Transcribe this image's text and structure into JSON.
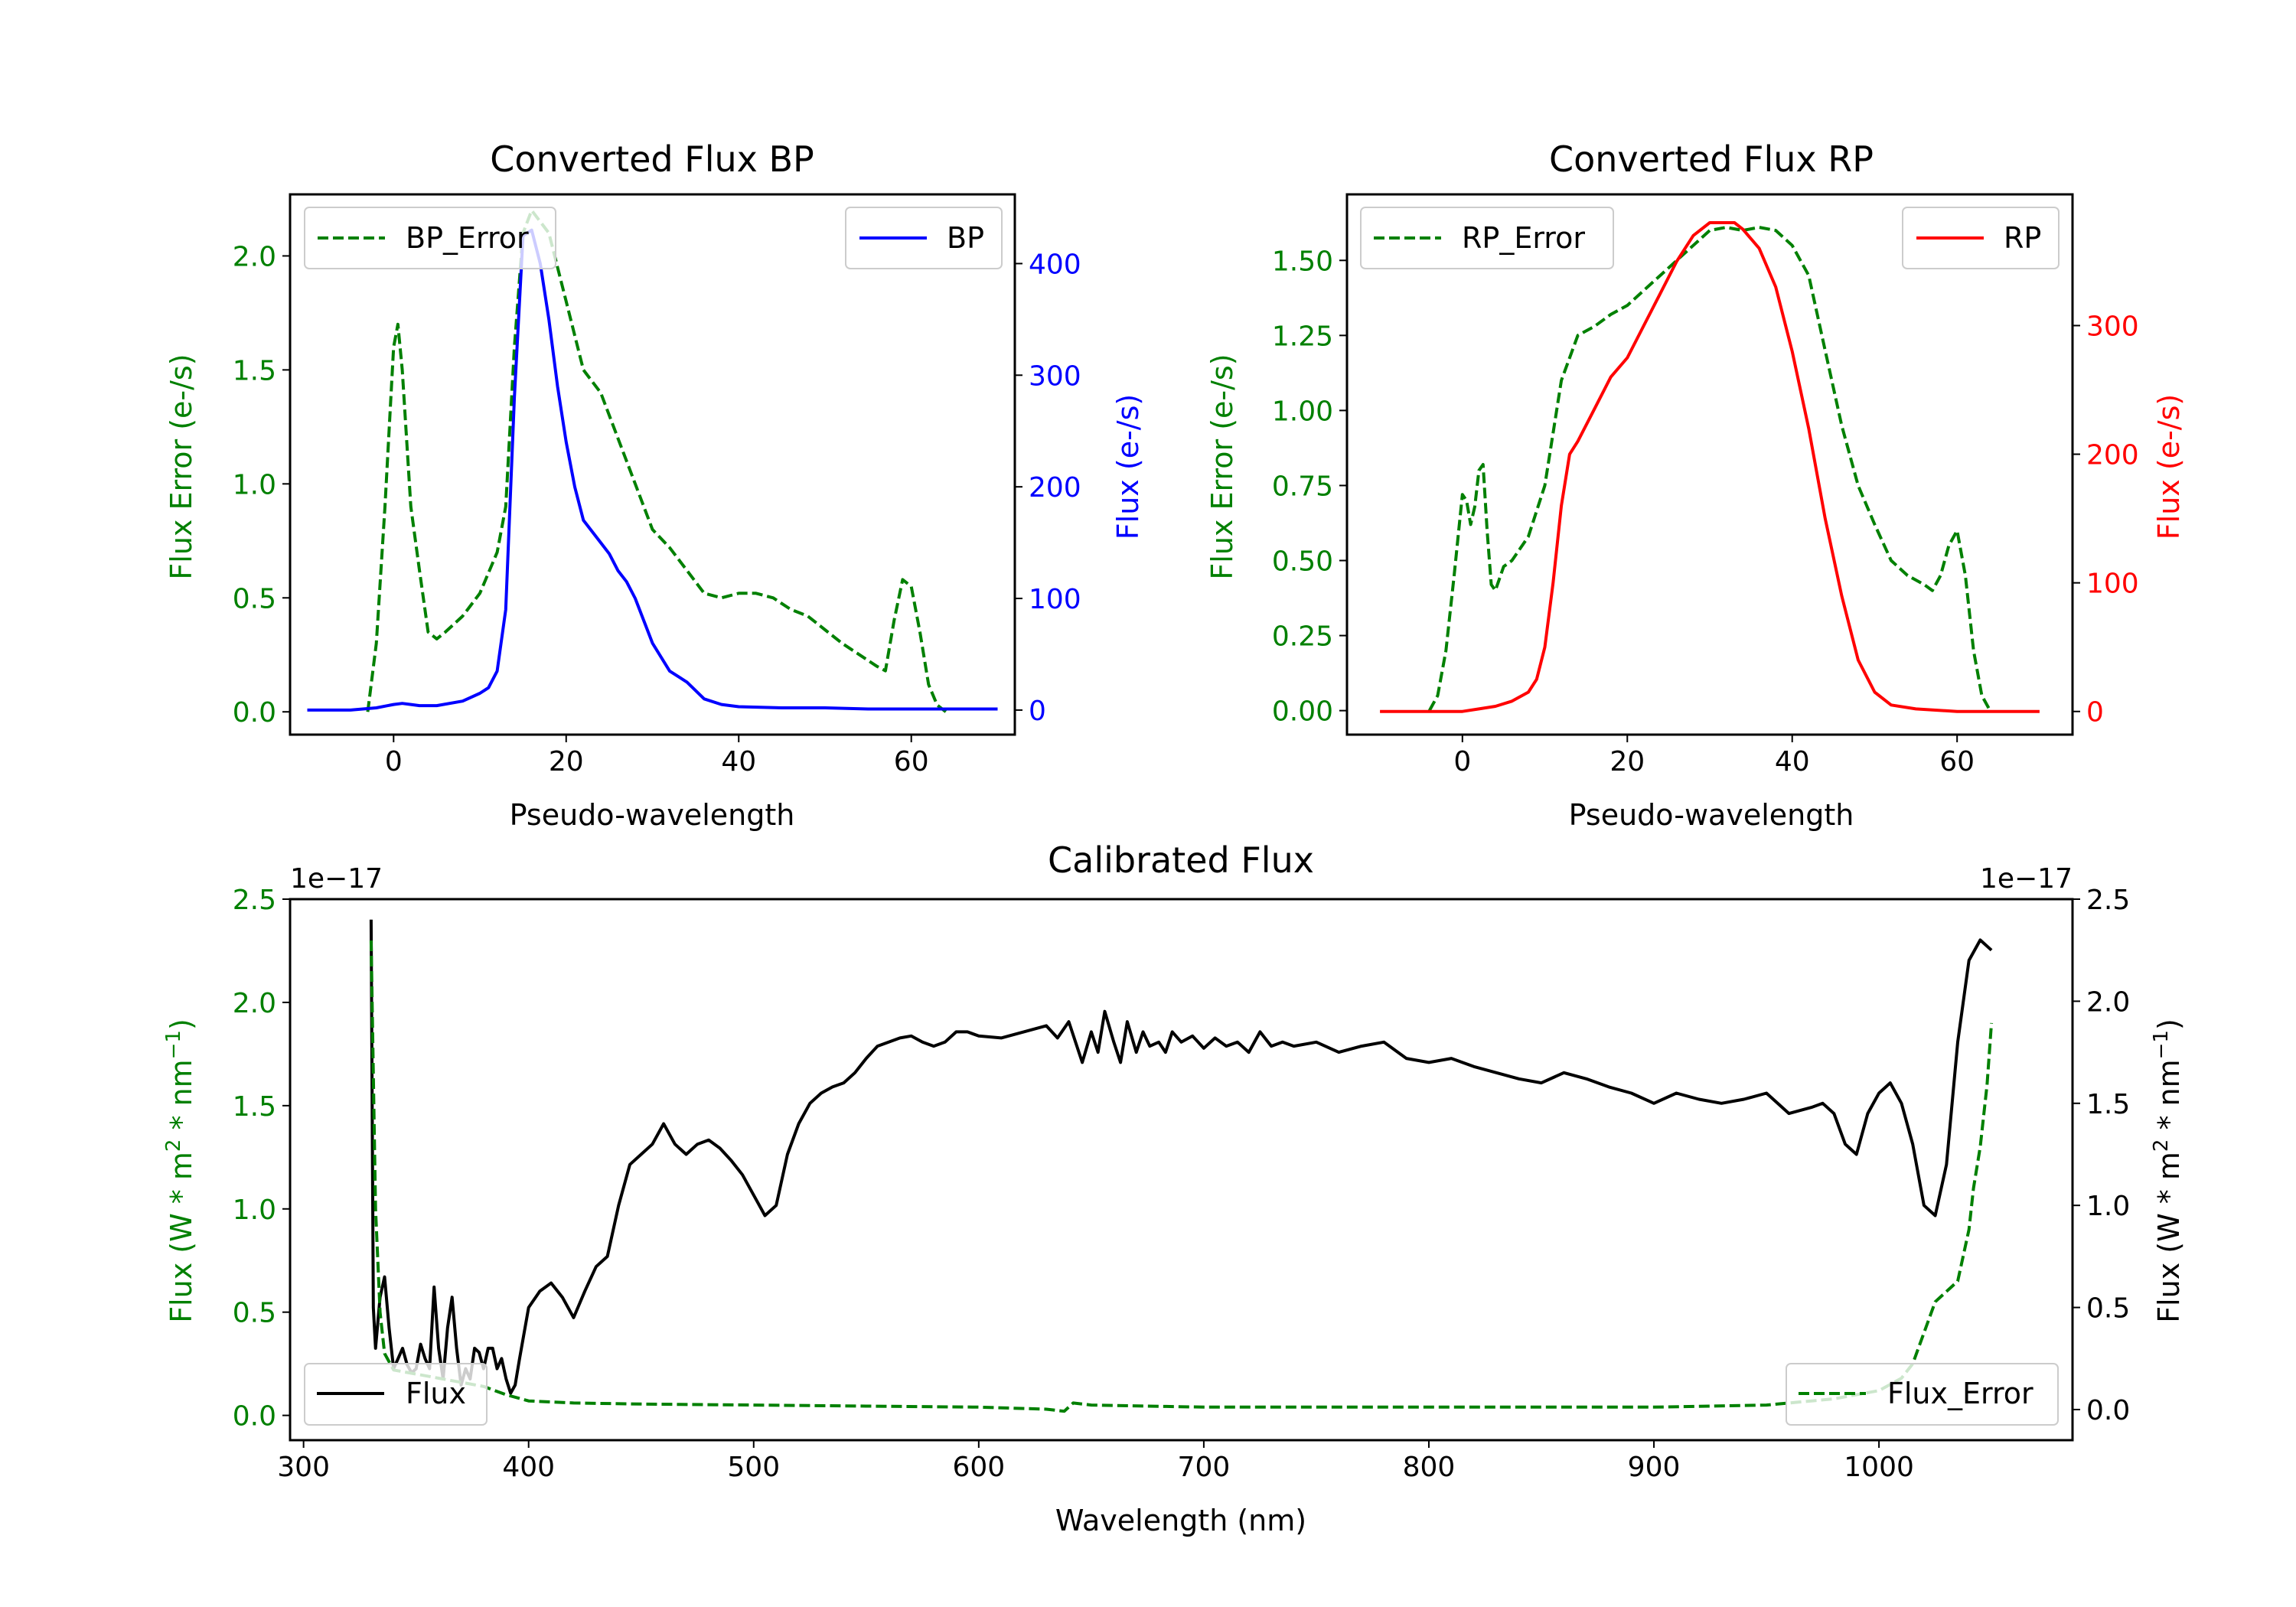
{
  "chart_data": [
    {
      "type": "line",
      "title": "Converted Flux BP",
      "xlabel": "Pseudo-wavelength",
      "ylabel_left": "Flux Error (e-/s)",
      "ylabel_right": "Flux (e-/s)",
      "xlim": [
        -12,
        72
      ],
      "ylim_left": [
        -0.1,
        2.27
      ],
      "ylim_right": [
        -22,
        462
      ],
      "xticks": [
        0,
        20,
        40,
        60
      ],
      "yticks_left": [
        0.0,
        0.5,
        1.0,
        1.5,
        2.0
      ],
      "ytick_labels_left": [
        "0.0",
        "0.5",
        "1.0",
        "1.5",
        "2.0"
      ],
      "yticks_right": [
        0,
        100,
        200,
        300,
        400
      ],
      "ytick_labels_right": [
        "0",
        "100",
        "200",
        "300",
        "400"
      ],
      "colors": {
        "left": "#008000",
        "right": "#0000ff"
      },
      "series": [
        {
          "name": "BP_Error",
          "axis": "left",
          "style": "dashed",
          "color": "#008000",
          "x": [
            -3,
            -2,
            -1,
            0,
            0.5,
            1,
            2,
            3,
            4,
            5,
            6,
            8,
            10,
            12,
            13,
            14,
            15,
            16,
            18,
            20,
            22,
            24,
            26,
            28,
            30,
            32,
            34,
            36,
            38,
            40,
            42,
            44,
            46,
            48,
            50,
            52,
            54,
            56,
            57,
            58,
            59,
            60,
            61,
            62,
            63,
            64
          ],
          "y": [
            0.0,
            0.3,
            0.9,
            1.6,
            1.7,
            1.5,
            0.9,
            0.62,
            0.35,
            0.32,
            0.35,
            0.42,
            0.52,
            0.7,
            0.9,
            1.6,
            2.1,
            2.2,
            2.1,
            1.8,
            1.5,
            1.4,
            1.2,
            1.0,
            0.8,
            0.72,
            0.62,
            0.52,
            0.5,
            0.52,
            0.52,
            0.5,
            0.45,
            0.42,
            0.36,
            0.3,
            0.25,
            0.2,
            0.18,
            0.4,
            0.58,
            0.55,
            0.35,
            0.12,
            0.03,
            0.0
          ]
        },
        {
          "name": "BP",
          "axis": "right",
          "style": "solid",
          "color": "#0000ff",
          "x": [
            -10,
            -5,
            -2,
            0,
            1,
            2,
            3,
            5,
            8,
            10,
            11,
            12,
            13,
            14,
            15,
            16,
            17,
            18,
            19,
            20,
            21,
            22,
            23,
            24,
            25,
            26,
            27,
            28,
            30,
            32,
            34,
            36,
            38,
            40,
            45,
            50,
            55,
            60,
            65,
            70
          ],
          "y": [
            0,
            0,
            2,
            5,
            6,
            5,
            4,
            4,
            8,
            15,
            20,
            35,
            90,
            280,
            425,
            430,
            400,
            350,
            290,
            240,
            200,
            170,
            160,
            150,
            140,
            125,
            115,
            100,
            60,
            35,
            25,
            10,
            5,
            3,
            2,
            2,
            1,
            1,
            1,
            1
          ]
        }
      ],
      "legends": [
        {
          "label": "BP_Error",
          "placement": "upper left"
        },
        {
          "label": "BP",
          "placement": "upper right"
        }
      ]
    },
    {
      "type": "line",
      "title": "Converted Flux RP",
      "xlabel": "Pseudo-wavelength",
      "ylabel_left": "Flux Error (e-/s)",
      "ylabel_right": "Flux (e-/s)",
      "xlim": [
        -14,
        74
      ],
      "ylim_left": [
        -0.08,
        1.72
      ],
      "ylim_right": [
        -18,
        402
      ],
      "xticks": [
        0,
        20,
        40,
        60
      ],
      "yticks_left": [
        0.0,
        0.25,
        0.5,
        0.75,
        1.0,
        1.25,
        1.5
      ],
      "ytick_labels_left": [
        "0.00",
        "0.25",
        "0.50",
        "0.75",
        "1.00",
        "1.25",
        "1.50"
      ],
      "yticks_right": [
        0,
        100,
        200,
        300
      ],
      "ytick_labels_right": [
        "0",
        "100",
        "200",
        "300"
      ],
      "colors": {
        "left": "#008000",
        "right": "#ff0000"
      },
      "series": [
        {
          "name": "RP_Error",
          "axis": "left",
          "style": "dashed",
          "color": "#008000",
          "x": [
            -4,
            -3,
            -2,
            -1,
            0,
            0.5,
            1,
            1.5,
            2,
            2.5,
            3,
            3.5,
            4,
            4.5,
            5,
            6,
            8,
            10,
            12,
            14,
            16,
            18,
            20,
            22,
            24,
            26,
            28,
            30,
            32,
            34,
            36,
            38,
            40,
            42,
            44,
            46,
            48,
            50,
            52,
            54,
            56,
            57,
            58,
            59,
            60,
            61,
            62,
            63,
            64
          ],
          "y": [
            0.0,
            0.05,
            0.2,
            0.45,
            0.72,
            0.7,
            0.62,
            0.68,
            0.8,
            0.82,
            0.6,
            0.42,
            0.4,
            0.44,
            0.48,
            0.5,
            0.58,
            0.75,
            1.1,
            1.25,
            1.28,
            1.32,
            1.35,
            1.4,
            1.45,
            1.5,
            1.55,
            1.6,
            1.61,
            1.6,
            1.61,
            1.6,
            1.55,
            1.45,
            1.2,
            0.95,
            0.75,
            0.62,
            0.5,
            0.45,
            0.42,
            0.4,
            0.45,
            0.55,
            0.6,
            0.45,
            0.2,
            0.05,
            0.0
          ]
        },
        {
          "name": "RP",
          "axis": "right",
          "style": "solid",
          "color": "#ff0000",
          "x": [
            -10,
            -5,
            0,
            2,
            4,
            6,
            8,
            9,
            10,
            11,
            12,
            13,
            14,
            16,
            18,
            20,
            22,
            24,
            26,
            28,
            30,
            32,
            33,
            34,
            36,
            38,
            40,
            42,
            44,
            46,
            48,
            50,
            52,
            55,
            60,
            65,
            70
          ],
          "y": [
            0,
            0,
            0,
            2,
            4,
            8,
            15,
            25,
            50,
            100,
            160,
            200,
            210,
            235,
            260,
            275,
            300,
            325,
            350,
            370,
            380,
            380,
            380,
            375,
            360,
            330,
            280,
            220,
            150,
            90,
            40,
            15,
            5,
            2,
            0,
            0,
            0
          ]
        }
      ],
      "legends": [
        {
          "label": "RP_Error",
          "placement": "upper left"
        },
        {
          "label": "RP",
          "placement": "upper right"
        }
      ]
    },
    {
      "type": "line",
      "title": "Calibrated Flux",
      "xlabel": "Wavelength (nm)",
      "ylabel_left_parts": [
        "Flux (W * m",
        "2",
        " * nm",
        "−1",
        ")"
      ],
      "ylabel_right_parts": [
        "Flux (W * m",
        "2",
        " * nm",
        "−1",
        ")"
      ],
      "offset_left": "1e−17",
      "offset_right": "1e−17",
      "xlim": [
        294,
        1086
      ],
      "ylim_left": [
        -0.12,
        2.5
      ],
      "ylim_right": [
        -0.15,
        2.5
      ],
      "xticks": [
        300,
        400,
        500,
        600,
        700,
        800,
        900,
        1000
      ],
      "yticks_left": [
        0.0,
        0.5,
        1.0,
        1.5,
        2.0,
        2.5
      ],
      "ytick_labels_left": [
        "0.0",
        "0.5",
        "1.0",
        "1.5",
        "2.0",
        "2.5"
      ],
      "yticks_right": [
        0.0,
        0.5,
        1.0,
        1.5,
        2.0,
        2.5
      ],
      "ytick_labels_right": [
        "0.0",
        "0.5",
        "1.0",
        "1.5",
        "2.0",
        "2.5"
      ],
      "colors": {
        "left": "#008000",
        "right": "#000000"
      },
      "series": [
        {
          "name": "Flux",
          "axis": "right",
          "style": "solid",
          "color": "#000000",
          "x": [
            330,
            331,
            332,
            334,
            336,
            338,
            340,
            342,
            344,
            346,
            348,
            350,
            352,
            354,
            356,
            358,
            360,
            362,
            364,
            366,
            368,
            370,
            372,
            374,
            376,
            378,
            380,
            382,
            384,
            386,
            388,
            390,
            392,
            394,
            396,
            400,
            405,
            410,
            415,
            420,
            425,
            430,
            435,
            440,
            445,
            450,
            455,
            460,
            465,
            470,
            475,
            480,
            485,
            490,
            495,
            500,
            505,
            510,
            515,
            520,
            525,
            530,
            535,
            540,
            545,
            550,
            555,
            560,
            565,
            570,
            575,
            580,
            585,
            590,
            595,
            600,
            610,
            620,
            630,
            635,
            640,
            643,
            646,
            650,
            653,
            656,
            660,
            663,
            666,
            670,
            673,
            676,
            680,
            683,
            686,
            690,
            695,
            700,
            705,
            710,
            715,
            720,
            725,
            730,
            735,
            740,
            750,
            760,
            770,
            780,
            790,
            800,
            810,
            820,
            830,
            840,
            850,
            860,
            870,
            880,
            890,
            900,
            910,
            920,
            930,
            940,
            950,
            960,
            970,
            975,
            980,
            985,
            990,
            995,
            1000,
            1005,
            1010,
            1015,
            1020,
            1025,
            1030,
            1035,
            1040,
            1045,
            1050
          ],
          "y": [
            2.4,
            0.5,
            0.3,
            0.55,
            0.65,
            0.4,
            0.2,
            0.25,
            0.3,
            0.22,
            0.18,
            0.2,
            0.32,
            0.25,
            0.2,
            0.6,
            0.3,
            0.15,
            0.4,
            0.55,
            0.3,
            0.12,
            0.2,
            0.15,
            0.3,
            0.28,
            0.2,
            0.3,
            0.3,
            0.2,
            0.25,
            0.15,
            0.08,
            0.12,
            0.25,
            0.5,
            0.58,
            0.62,
            0.55,
            0.45,
            0.58,
            0.7,
            0.75,
            1.0,
            1.2,
            1.25,
            1.3,
            1.4,
            1.3,
            1.25,
            1.3,
            1.32,
            1.28,
            1.22,
            1.15,
            1.05,
            0.95,
            1.0,
            1.25,
            1.4,
            1.5,
            1.55,
            1.58,
            1.6,
            1.65,
            1.72,
            1.78,
            1.8,
            1.82,
            1.83,
            1.8,
            1.78,
            1.8,
            1.85,
            1.85,
            1.83,
            1.82,
            1.85,
            1.88,
            1.82,
            1.9,
            1.8,
            1.7,
            1.85,
            1.75,
            1.95,
            1.8,
            1.7,
            1.9,
            1.75,
            1.85,
            1.78,
            1.8,
            1.75,
            1.85,
            1.8,
            1.83,
            1.77,
            1.82,
            1.78,
            1.8,
            1.75,
            1.85,
            1.78,
            1.8,
            1.78,
            1.8,
            1.75,
            1.78,
            1.8,
            1.72,
            1.7,
            1.72,
            1.68,
            1.65,
            1.62,
            1.6,
            1.65,
            1.62,
            1.58,
            1.55,
            1.5,
            1.55,
            1.52,
            1.5,
            1.52,
            1.55,
            1.45,
            1.48,
            1.5,
            1.45,
            1.3,
            1.25,
            1.45,
            1.55,
            1.6,
            1.5,
            1.3,
            1.0,
            0.95,
            1.2,
            1.8,
            2.2,
            2.3,
            2.25
          ]
        },
        {
          "name": "Flux_Error",
          "axis": "left",
          "style": "dashed",
          "color": "#008000",
          "x": [
            330,
            332,
            334,
            336,
            340,
            350,
            360,
            370,
            380,
            390,
            400,
            420,
            450,
            500,
            550,
            600,
            630,
            638,
            642,
            650,
            700,
            800,
            900,
            950,
            980,
            1000,
            1010,
            1015,
            1020,
            1025,
            1030,
            1035,
            1040,
            1042,
            1045,
            1048,
            1050
          ],
          "y": [
            2.3,
            1.0,
            0.5,
            0.3,
            0.22,
            0.2,
            0.18,
            0.16,
            0.14,
            0.1,
            0.07,
            0.06,
            0.055,
            0.05,
            0.045,
            0.04,
            0.03,
            0.02,
            0.06,
            0.05,
            0.04,
            0.04,
            0.04,
            0.05,
            0.08,
            0.12,
            0.18,
            0.25,
            0.4,
            0.55,
            0.6,
            0.65,
            0.9,
            1.1,
            1.3,
            1.6,
            1.9
          ]
        }
      ],
      "legends": [
        {
          "label": "Flux",
          "placement": "lower left"
        },
        {
          "label": "Flux_Error",
          "placement": "lower right"
        }
      ]
    }
  ]
}
